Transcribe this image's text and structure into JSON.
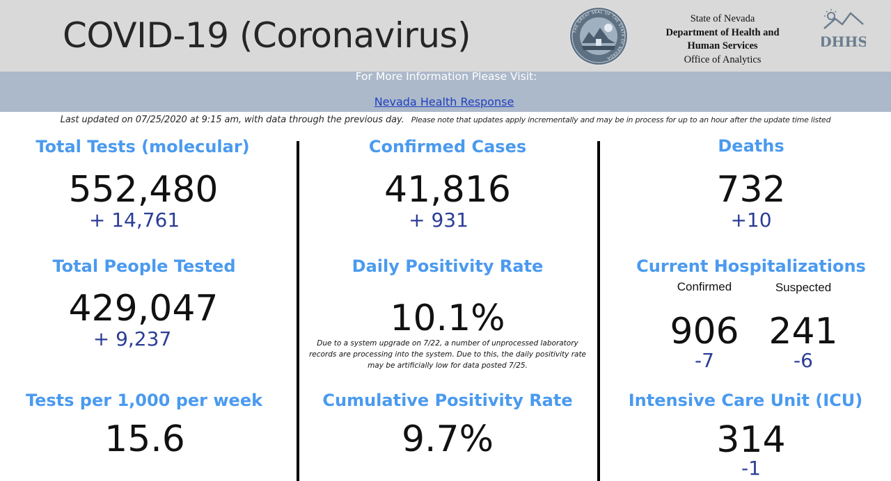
{
  "header": {
    "title": "COVID-19 (Coronavirus)",
    "agency_lines": [
      "State of Nevada",
      "Department of Health and",
      "Human Services",
      "Office of Analytics"
    ],
    "seal_text": "THE GREAT SEAL OF THE STATE OF NEVADA",
    "logo_text": "DHHS",
    "background_color": "#d9d9d9"
  },
  "info": {
    "title": "For More Information Please Visit:",
    "link": "Nevada Health Response",
    "band_color": "#acb9ca"
  },
  "updated": {
    "main": "Last updated on 07/25/2020 at 9:15 am, with data through the previous day.",
    "note": "Please note that updates apply incrementally and may be in process for up to an hour after the update time listed"
  },
  "colors": {
    "heading": "#4a9aef",
    "delta": "#2a3d96"
  },
  "stats": {
    "total_tests": {
      "label": "Total Tests (molecular)",
      "value": "552,480",
      "delta": "+ 14,761"
    },
    "confirmed_cases": {
      "label": "Confirmed Cases",
      "value": "41,816",
      "delta": "+  931"
    },
    "deaths": {
      "label": "Deaths",
      "value": "732",
      "delta": "+10"
    },
    "people_tested": {
      "label": "Total People Tested",
      "value": "429,047",
      "delta": "+  9,237"
    },
    "daily_positivity": {
      "label": "Daily Positivity Rate",
      "value": "10.1%",
      "note": "Due to a system upgrade on 7/22, a number of unprocessed laboratory records are processing into the system.  Due to this, the daily positivity rate may be artificially low for data posted 7/25."
    },
    "hospitalizations": {
      "label": "Current Hospitalizations",
      "confirmed_label": "Confirmed",
      "suspected_label": "Suspected",
      "confirmed_value": "906",
      "confirmed_delta": "-7",
      "suspected_value": "241",
      "suspected_delta": "-6"
    },
    "tests_per_1000": {
      "label": "Tests per 1,000 per week",
      "value": "15.6"
    },
    "cumulative_positivity": {
      "label": "Cumulative Positivity Rate",
      "value": "9.7%"
    },
    "icu": {
      "label": "Intensive Care Unit (ICU)",
      "value": "314",
      "delta": "-1"
    }
  }
}
